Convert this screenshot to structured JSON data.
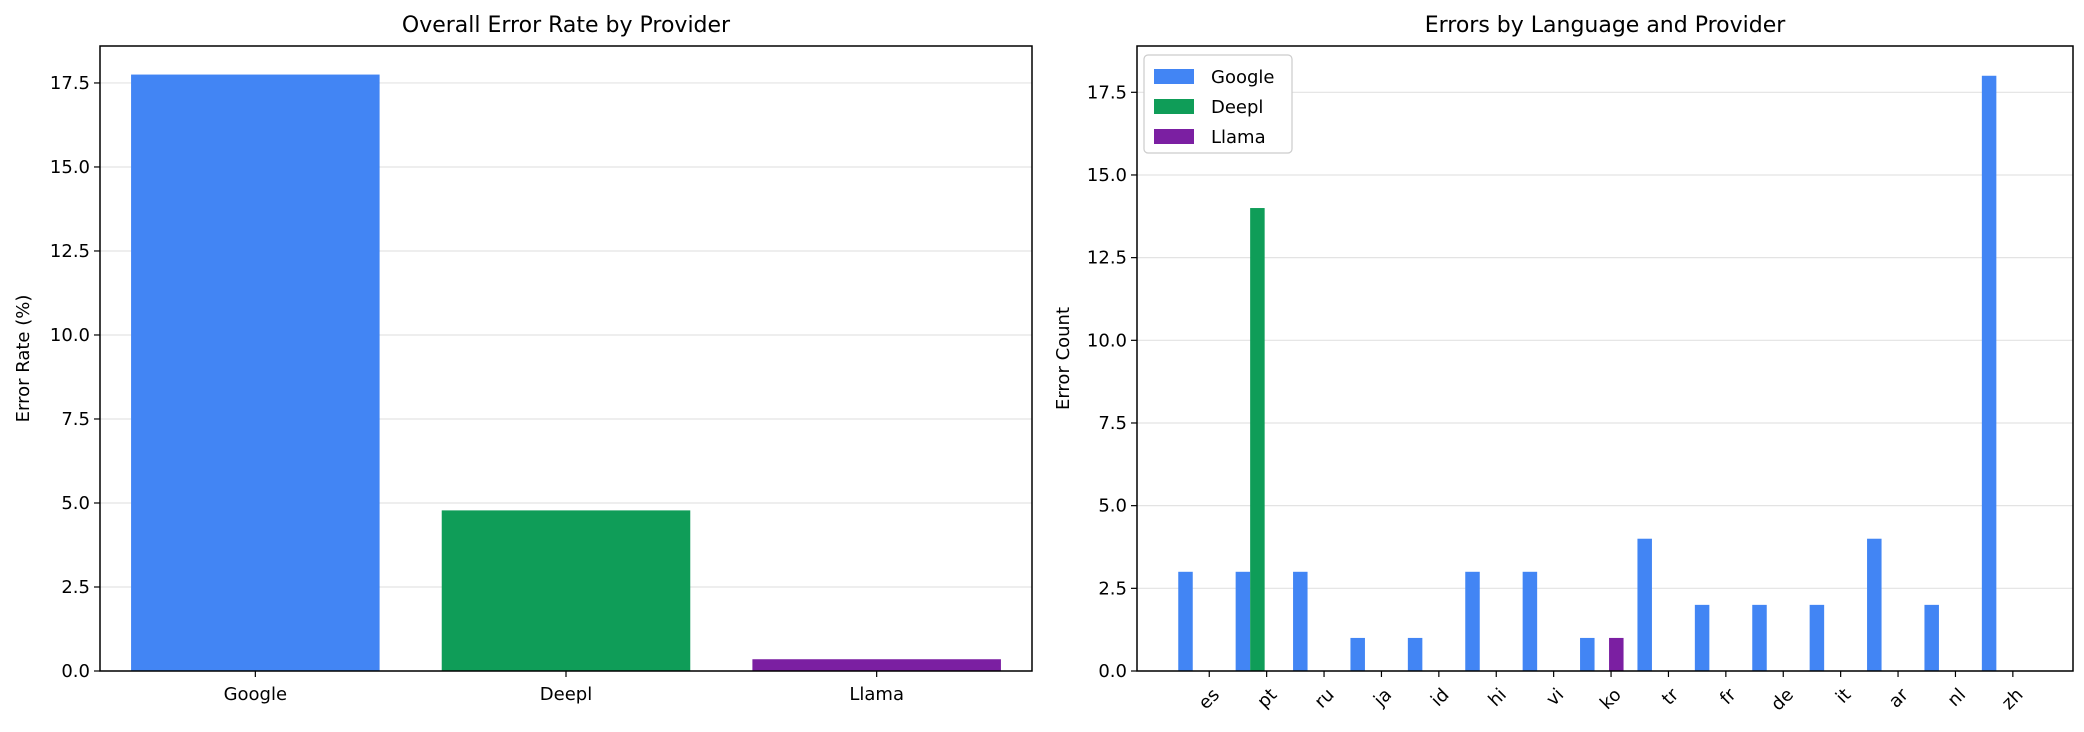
{
  "chart_data": [
    {
      "type": "bar",
      "title": "Overall Error Rate by Provider",
      "xlabel": "",
      "ylabel": "Error Rate (%)",
      "categories": [
        "Google",
        "Deepl",
        "Llama"
      ],
      "values": [
        17.75,
        4.78,
        0.35
      ],
      "colors": [
        "#4285F4",
        "#0F9D58",
        "#7B1FA2"
      ],
      "ylim": [
        0,
        18.6
      ],
      "yticks": [
        0.0,
        2.5,
        5.0,
        7.5,
        10.0,
        12.5,
        15.0,
        17.5
      ],
      "grid": "y"
    },
    {
      "type": "bar",
      "title": "Errors by Language and Provider",
      "xlabel": "",
      "ylabel": "Error Count",
      "categories": [
        "es",
        "pt",
        "ru",
        "ja",
        "id",
        "hi",
        "vi",
        "ko",
        "tr",
        "fr",
        "de",
        "it",
        "ar",
        "nl",
        "zh"
      ],
      "series": [
        {
          "name": "Google",
          "color": "#4285F4",
          "values": [
            3,
            3,
            3,
            1,
            1,
            3,
            3,
            1,
            4,
            2,
            2,
            2,
            4,
            2,
            18
          ]
        },
        {
          "name": "Deepl",
          "color": "#0F9D58",
          "values": [
            0,
            14,
            0,
            0,
            0,
            0,
            0,
            0,
            0,
            0,
            0,
            0,
            0,
            0,
            0
          ]
        },
        {
          "name": "Llama",
          "color": "#7B1FA2",
          "values": [
            0,
            0,
            0,
            0,
            0,
            0,
            0,
            1,
            0,
            0,
            0,
            0,
            0,
            0,
            0
          ]
        }
      ],
      "ylim": [
        0,
        18.9
      ],
      "yticks": [
        0.0,
        2.5,
        5.0,
        7.5,
        10.0,
        12.5,
        15.0,
        17.5
      ],
      "legend": "top-left",
      "grid": "y"
    }
  ]
}
